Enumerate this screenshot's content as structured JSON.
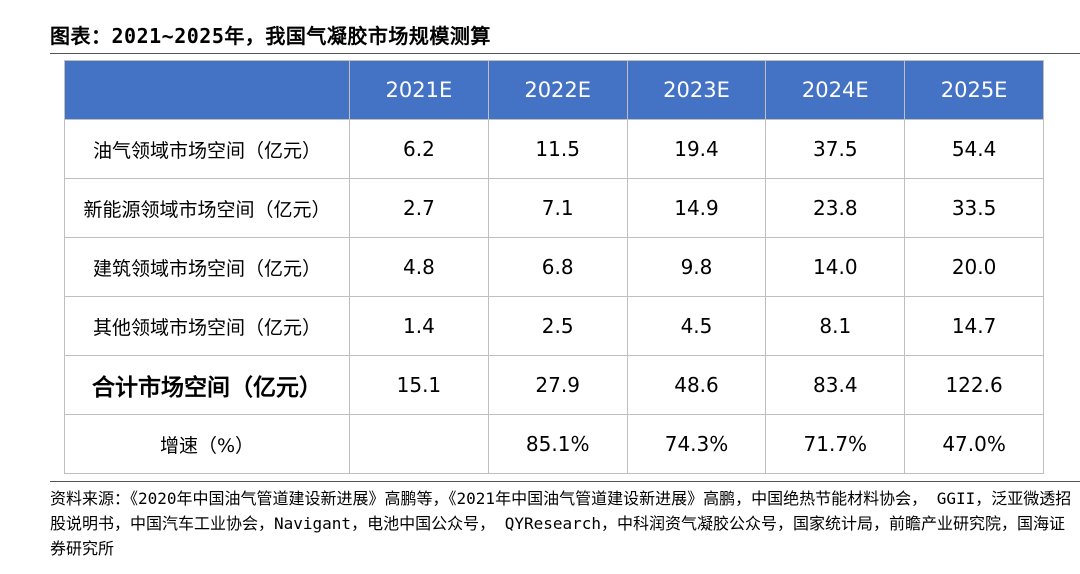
{
  "title": "图表：2021~2025年，我国气凝胶市场规模测算",
  "table": {
    "header": [
      "",
      "2021E",
      "2022E",
      "2023E",
      "2024E",
      "2025E"
    ],
    "rows": [
      {
        "label": "油气领域市场空间（亿元）",
        "values": [
          "6.2",
          "11.5",
          "19.4",
          "37.5",
          "54.4"
        ]
      },
      {
        "label": "新能源领域市场空间（亿元）",
        "values": [
          "2.7",
          "7.1",
          "14.9",
          "23.8",
          "33.5"
        ]
      },
      {
        "label": "建筑领域市场空间（亿元）",
        "values": [
          "4.8",
          "6.8",
          "9.8",
          "14.0",
          "20.0"
        ]
      },
      {
        "label": "其他领域市场空间（亿元）",
        "values": [
          "1.4",
          "2.5",
          "4.5",
          "8.1",
          "14.7"
        ]
      },
      {
        "label": "合计市场空间（亿元）",
        "values": [
          "15.1",
          "27.9",
          "48.6",
          "83.4",
          "122.6"
        ]
      },
      {
        "label": "增速（%）",
        "values": [
          "",
          "85.1%",
          "74.3%",
          "71.7%",
          "47.0%"
        ]
      }
    ]
  },
  "source": "资料来源：《2020年中国油气管道建设新进展》高鹏等，《2021年中国油气管道建设新进展》高鹏，中国绝热节能材料协会， GGII，泛亚微透招股说明书，中国汽车工业协会，Navigant，电池中国公众号， QYResearch，中科润资气凝胶公众号，国家统计局，前瞻产业研究院，国海证券研究所",
  "colors": {
    "header_bg": "#4472c4",
    "header_text": "#ffffff",
    "border": "#bfbfbf"
  }
}
